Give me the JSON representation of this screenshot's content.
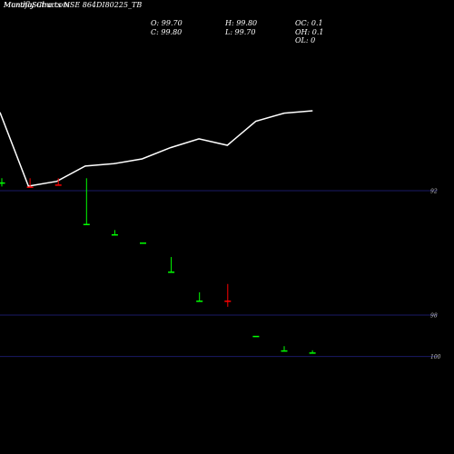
{
  "header": {
    "title_overlay": "MunafaSutra.com",
    "title": "Monthly Charts NSE 864DI80225_TB"
  },
  "ohlc_panel": {
    "open": "O: 99.70",
    "high": "H: 99.80",
    "oc": "OC: 0.1",
    "close": "C: 99.80",
    "low": "L: 99.70",
    "oh": "OH: 0.1",
    "ol": "OL: 0"
  },
  "colors": {
    "background": "#000000",
    "line": "#ffffff",
    "up": "#00ff00",
    "down": "#ff0000",
    "grid": "#1a1a66"
  },
  "chart_data": [
    {
      "type": "line",
      "x": [
        0,
        1,
        2,
        3,
        4,
        5,
        6,
        7,
        8,
        9,
        10,
        11
      ],
      "values": [
        99.4,
        90.2,
        90.8,
        92.7,
        93.0,
        93.6,
        95.0,
        96.1,
        95.3,
        98.3,
        99.3,
        99.6
      ]
    },
    {
      "type": "candlestick",
      "y_ticks": [
        92,
        98,
        100
      ],
      "candles": [
        {
          "open": 91.5,
          "high": 91.8,
          "low": 91.4,
          "close": 91.6
        },
        {
          "open": 91.8,
          "high": 91.8,
          "low": 91.4,
          "close": 91.5
        },
        {
          "open": 91.7,
          "high": 91.7,
          "low": 91.4,
          "close": 91.5
        },
        {
          "open": 91.5,
          "high": 93.6,
          "low": 91.4,
          "close": 93.6
        },
        {
          "open": 93.9,
          "high": 94.1,
          "low": 93.9,
          "close": 94.1
        },
        {
          "open": 94.5,
          "high": 94.5,
          "low": 94.5,
          "close": 94.5
        },
        {
          "open": 95.2,
          "high": 95.9,
          "low": 95.2,
          "close": 95.9
        },
        {
          "open": 96.9,
          "high": 97.3,
          "low": 96.9,
          "close": 97.3
        },
        {
          "open": 97.3,
          "high": 97.6,
          "low": 96.5,
          "close": 96.5
        },
        {
          "open": 99.0,
          "high": 99.0,
          "low": 99.0,
          "close": 99.0
        },
        {
          "open": 99.5,
          "high": 99.7,
          "low": 99.5,
          "close": 99.7
        },
        {
          "open": 99.7,
          "high": 99.8,
          "low": 99.7,
          "close": 99.8
        }
      ]
    }
  ]
}
